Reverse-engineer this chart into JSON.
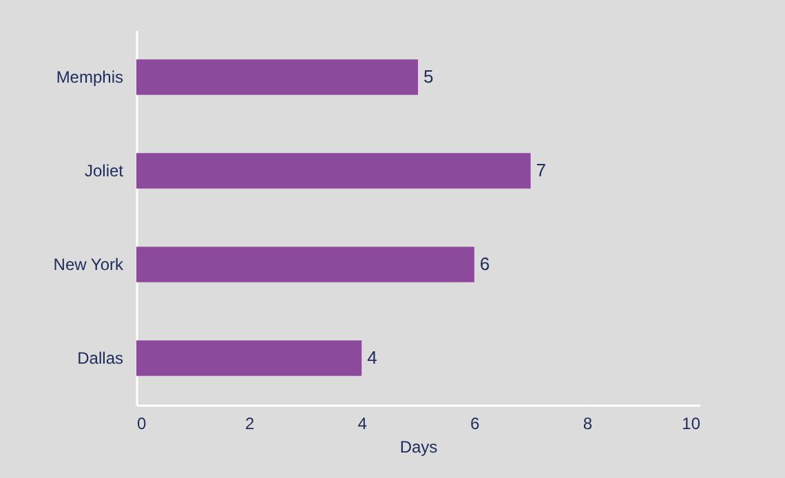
{
  "chart_data": {
    "type": "bar",
    "orientation": "horizontal",
    "xlabel": "Days",
    "categories": [
      "Memphis",
      "Joliet",
      "New York",
      "Dallas"
    ],
    "values": [
      5,
      7,
      6,
      4
    ],
    "color": "#8b4a9b",
    "xlim": [
      0,
      10
    ],
    "xticks": [
      0,
      2,
      4,
      6,
      8,
      10
    ],
    "data_labels": true
  }
}
